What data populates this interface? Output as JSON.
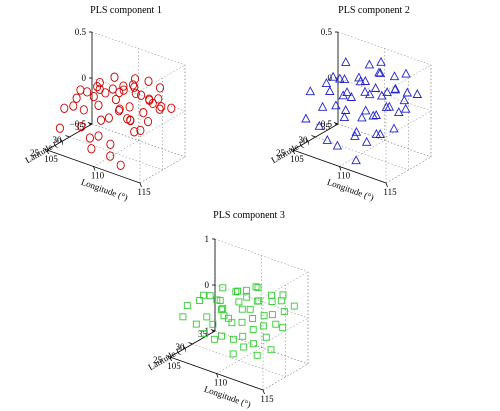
{
  "chart_data": [
    {
      "type": "scatter",
      "title": "PLS component 1",
      "xlabel": "Longitude (°)",
      "ylabel": "Latitude (°)",
      "zlabel": "",
      "xlim": [
        105,
        115
      ],
      "ylim": [
        25,
        35
      ],
      "zlim": [
        -0.5,
        0.5
      ],
      "xticks": [
        "105",
        "110",
        "115"
      ],
      "yticks": [
        "25",
        "30",
        "35"
      ],
      "zticks": [
        "−0.5",
        "0",
        "0.5"
      ],
      "marker": "circle",
      "color": "#cc0000",
      "grid": true,
      "points": [
        [
          105.8,
          27.2,
          -0.08
        ],
        [
          106.3,
          28.9,
          0.0
        ],
        [
          106.7,
          30.4,
          0.04
        ],
        [
          105.4,
          31.6,
          -0.02
        ],
        [
          107.2,
          26.3,
          0.02
        ],
        [
          107.6,
          27.8,
          -0.05
        ],
        [
          107.9,
          29.4,
          0.06
        ],
        [
          107.4,
          31.2,
          0.1
        ],
        [
          108.3,
          25.8,
          -0.15
        ],
        [
          108.6,
          27.1,
          -0.3
        ],
        [
          108.8,
          28.6,
          0.02
        ],
        [
          108.2,
          30.1,
          0.13
        ],
        [
          108.5,
          32.4,
          0.08
        ],
        [
          109.1,
          26.4,
          -0.38
        ],
        [
          109.4,
          27.9,
          -0.1
        ],
        [
          109.2,
          29.3,
          0.15
        ],
        [
          109.6,
          30.8,
          0.05
        ],
        [
          109.3,
          33.1,
          0.12
        ],
        [
          110.0,
          26.1,
          -0.2
        ],
        [
          110.2,
          28.0,
          -0.05
        ],
        [
          110.4,
          29.9,
          0.18
        ],
        [
          110.1,
          31.5,
          0.15
        ],
        [
          110.3,
          33.6,
          0.22
        ],
        [
          110.9,
          26.9,
          -0.28
        ],
        [
          111.1,
          28.4,
          0.05
        ],
        [
          111.2,
          30.0,
          -0.08
        ],
        [
          111.0,
          32.0,
          0.2
        ],
        [
          111.5,
          25.6,
          -0.35
        ],
        [
          111.7,
          27.3,
          0.12
        ],
        [
          111.9,
          29.1,
          0.1
        ],
        [
          111.6,
          31.1,
          0.18
        ],
        [
          112.2,
          26.5,
          -0.45
        ],
        [
          112.4,
          28.2,
          0.0
        ],
        [
          112.6,
          30.2,
          0.22
        ],
        [
          112.3,
          32.6,
          0.1
        ],
        [
          113.0,
          27.0,
          0.05
        ],
        [
          113.2,
          28.8,
          -0.1
        ],
        [
          113.3,
          30.6,
          0.18
        ],
        [
          113.1,
          33.0,
          0.12
        ],
        [
          113.8,
          26.2,
          -0.02
        ],
        [
          113.9,
          28.0,
          0.14
        ],
        [
          114.1,
          29.7,
          0.2
        ],
        [
          114.0,
          31.8,
          0.1
        ],
        [
          114.6,
          27.6,
          0.08
        ],
        [
          114.7,
          30.0,
          0.15
        ],
        [
          106.0,
          25.8,
          -0.25
        ],
        [
          106.9,
          32.8,
          0.08
        ],
        [
          109.8,
          34.2,
          0.12
        ],
        [
          112.8,
          34.0,
          0.2
        ],
        [
          114.3,
          33.4,
          0.05
        ],
        [
          108.0,
          33.8,
          0.15
        ],
        [
          111.8,
          33.5,
          0.25
        ]
      ]
    },
    {
      "type": "scatter",
      "title": "PLS component 2",
      "xlabel": "Longitude (°)",
      "ylabel": "Latitude (°)",
      "zlabel": "",
      "xlim": [
        105,
        115
      ],
      "ylim": [
        25,
        35
      ],
      "zlim": [
        -0.5,
        0.5
      ],
      "xticks": [
        "105",
        "110",
        "115"
      ],
      "yticks": [
        "25",
        "30",
        "35"
      ],
      "zticks": [
        "−0.5",
        "0",
        "0.5"
      ],
      "marker": "triangle",
      "color": "#2222cc",
      "grid": true,
      "points": [
        [
          105.8,
          27.2,
          0.1
        ],
        [
          106.3,
          28.9,
          -0.1
        ],
        [
          106.7,
          30.4,
          0.2
        ],
        [
          105.4,
          31.6,
          0.05
        ],
        [
          107.2,
          26.3,
          -0.2
        ],
        [
          107.6,
          27.8,
          0.15
        ],
        [
          107.9,
          29.4,
          0.25
        ],
        [
          107.4,
          31.2,
          0.0
        ],
        [
          108.3,
          25.8,
          -0.3
        ],
        [
          108.6,
          27.1,
          0.05
        ],
        [
          108.8,
          28.6,
          0.3
        ],
        [
          108.2,
          30.1,
          -0.1
        ],
        [
          108.5,
          32.4,
          0.2
        ],
        [
          109.1,
          26.4,
          -0.35
        ],
        [
          109.4,
          27.9,
          0.2
        ],
        [
          109.2,
          29.3,
          0.1
        ],
        [
          109.6,
          30.8,
          -0.15
        ],
        [
          109.3,
          33.1,
          0.35
        ],
        [
          110.0,
          26.1,
          0.0
        ],
        [
          110.2,
          28.0,
          -0.25
        ],
        [
          110.4,
          29.9,
          0.3
        ],
        [
          110.1,
          31.5,
          0.1
        ],
        [
          110.3,
          33.6,
          0.4
        ],
        [
          110.9,
          26.9,
          -0.15
        ],
        [
          111.1,
          28.4,
          0.25
        ],
        [
          111.2,
          30.0,
          -0.05
        ],
        [
          111.0,
          32.0,
          0.35
        ],
        [
          111.5,
          25.6,
          -0.4
        ],
        [
          111.7,
          27.3,
          0.1
        ],
        [
          111.9,
          29.1,
          0.3
        ],
        [
          111.6,
          31.1,
          0.15
        ],
        [
          112.2,
          26.5,
          -0.2
        ],
        [
          112.4,
          28.2,
          0.05
        ],
        [
          112.6,
          30.2,
          0.25
        ],
        [
          112.3,
          32.6,
          0.2
        ],
        [
          113.0,
          27.0,
          -0.1
        ],
        [
          113.2,
          28.8,
          0.15
        ],
        [
          113.3,
          30.6,
          0.3
        ],
        [
          113.1,
          33.0,
          0.1
        ],
        [
          113.8,
          26.2,
          -0.05
        ],
        [
          113.9,
          28.0,
          0.2
        ],
        [
          114.1,
          29.7,
          0.1
        ],
        [
          114.0,
          31.8,
          0.25
        ],
        [
          114.6,
          27.6,
          0.0
        ],
        [
          114.7,
          30.0,
          0.15
        ],
        [
          106.0,
          25.8,
          -0.15
        ],
        [
          106.9,
          32.8,
          0.3
        ],
        [
          109.8,
          34.2,
          0.25
        ],
        [
          112.8,
          34.0,
          0.35
        ],
        [
          114.3,
          33.4,
          0.2
        ],
        [
          108.0,
          33.8,
          0.1
        ],
        [
          111.8,
          33.5,
          0.3
        ]
      ]
    },
    {
      "type": "scatter",
      "title": "PLS component 3",
      "xlabel": "Longitude (°)",
      "ylabel": "Latitude (°)",
      "zlabel": "",
      "xlim": [
        105,
        115
      ],
      "ylim": [
        25,
        35
      ],
      "zlim": [
        -1,
        1
      ],
      "xticks": [
        "105",
        "110",
        "115"
      ],
      "yticks": [
        "25",
        "30",
        "35"
      ],
      "zticks": [
        "−1",
        "0",
        "1"
      ],
      "marker": "square",
      "color": "#33cc33",
      "grid": true,
      "points": [
        [
          105.8,
          27.2,
          0.05
        ],
        [
          106.3,
          28.9,
          0.1
        ],
        [
          106.7,
          30.4,
          0.15
        ],
        [
          105.4,
          31.6,
          0.0
        ],
        [
          107.2,
          26.3,
          -0.2
        ],
        [
          107.6,
          27.8,
          -0.1
        ],
        [
          107.9,
          29.4,
          0.2
        ],
        [
          107.4,
          31.2,
          0.05
        ],
        [
          108.3,
          25.8,
          -0.3
        ],
        [
          108.6,
          27.1,
          -0.15
        ],
        [
          108.8,
          28.6,
          0.1
        ],
        [
          108.2,
          30.1,
          0.0
        ],
        [
          108.5,
          32.4,
          0.25
        ],
        [
          109.1,
          26.4,
          -0.4
        ],
        [
          109.4,
          27.9,
          0.05
        ],
        [
          109.2,
          29.3,
          -0.1
        ],
        [
          109.6,
          30.8,
          0.2
        ],
        [
          109.3,
          33.1,
          0.3
        ],
        [
          110.0,
          26.1,
          -0.25
        ],
        [
          110.2,
          28.0,
          -0.05
        ],
        [
          110.4,
          29.9,
          0.15
        ],
        [
          110.1,
          31.5,
          0.3
        ],
        [
          110.3,
          33.6,
          0.4
        ],
        [
          110.9,
          26.9,
          -0.3
        ],
        [
          111.1,
          28.4,
          0.0
        ],
        [
          111.2,
          30.0,
          0.2
        ],
        [
          111.0,
          32.0,
          0.25
        ],
        [
          111.5,
          25.6,
          -0.5
        ],
        [
          111.7,
          27.3,
          -0.2
        ],
        [
          111.9,
          29.1,
          0.1
        ],
        [
          111.6,
          31.1,
          0.35
        ],
        [
          112.2,
          26.5,
          -0.35
        ],
        [
          112.4,
          28.2,
          -0.05
        ],
        [
          112.6,
          30.2,
          0.15
        ],
        [
          112.3,
          32.6,
          0.3
        ],
        [
          113.0,
          27.0,
          -0.25
        ],
        [
          113.2,
          28.8,
          0.05
        ],
        [
          113.3,
          30.6,
          0.2
        ],
        [
          113.1,
          33.0,
          0.35
        ],
        [
          113.8,
          26.2,
          -0.4
        ],
        [
          113.9,
          28.0,
          -0.1
        ],
        [
          114.1,
          29.7,
          0.1
        ],
        [
          114.0,
          31.8,
          0.25
        ],
        [
          114.6,
          27.6,
          -0.3
        ],
        [
          114.7,
          30.0,
          0.05
        ],
        [
          106.0,
          25.8,
          -0.1
        ],
        [
          106.9,
          32.8,
          0.2
        ],
        [
          109.8,
          34.2,
          0.35
        ],
        [
          112.8,
          34.0,
          0.4
        ],
        [
          114.3,
          33.4,
          0.3
        ],
        [
          108.0,
          33.8,
          0.15
        ],
        [
          111.8,
          33.5,
          0.35
        ]
      ]
    }
  ]
}
